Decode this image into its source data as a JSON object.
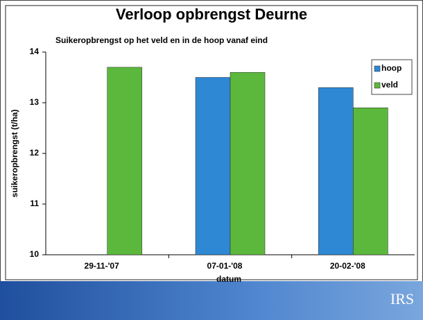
{
  "chart_data": {
    "type": "bar",
    "title": "Verloop opbrengst Deurne",
    "subtitle": "Suikeropbrengst op het veld en in de hoop vanaf eind",
    "x_label": "datum",
    "y_label": "suikeropbrengst (t/ha)",
    "categories": [
      "29-11-'07",
      "07-01-'08",
      "20-02-'08"
    ],
    "series": [
      {
        "name": "hoop",
        "color": "#2f88d4",
        "values": [
          null,
          13.5,
          13.3
        ]
      },
      {
        "name": "veld",
        "color": "#5cb83c",
        "values": [
          13.7,
          13.6,
          12.9
        ]
      }
    ],
    "ylim": [
      10,
      14
    ],
    "yticks": [
      10,
      11,
      12,
      13,
      14
    ],
    "grid": false,
    "legend": "top-right"
  },
  "footer": {
    "logo": "IRS"
  }
}
